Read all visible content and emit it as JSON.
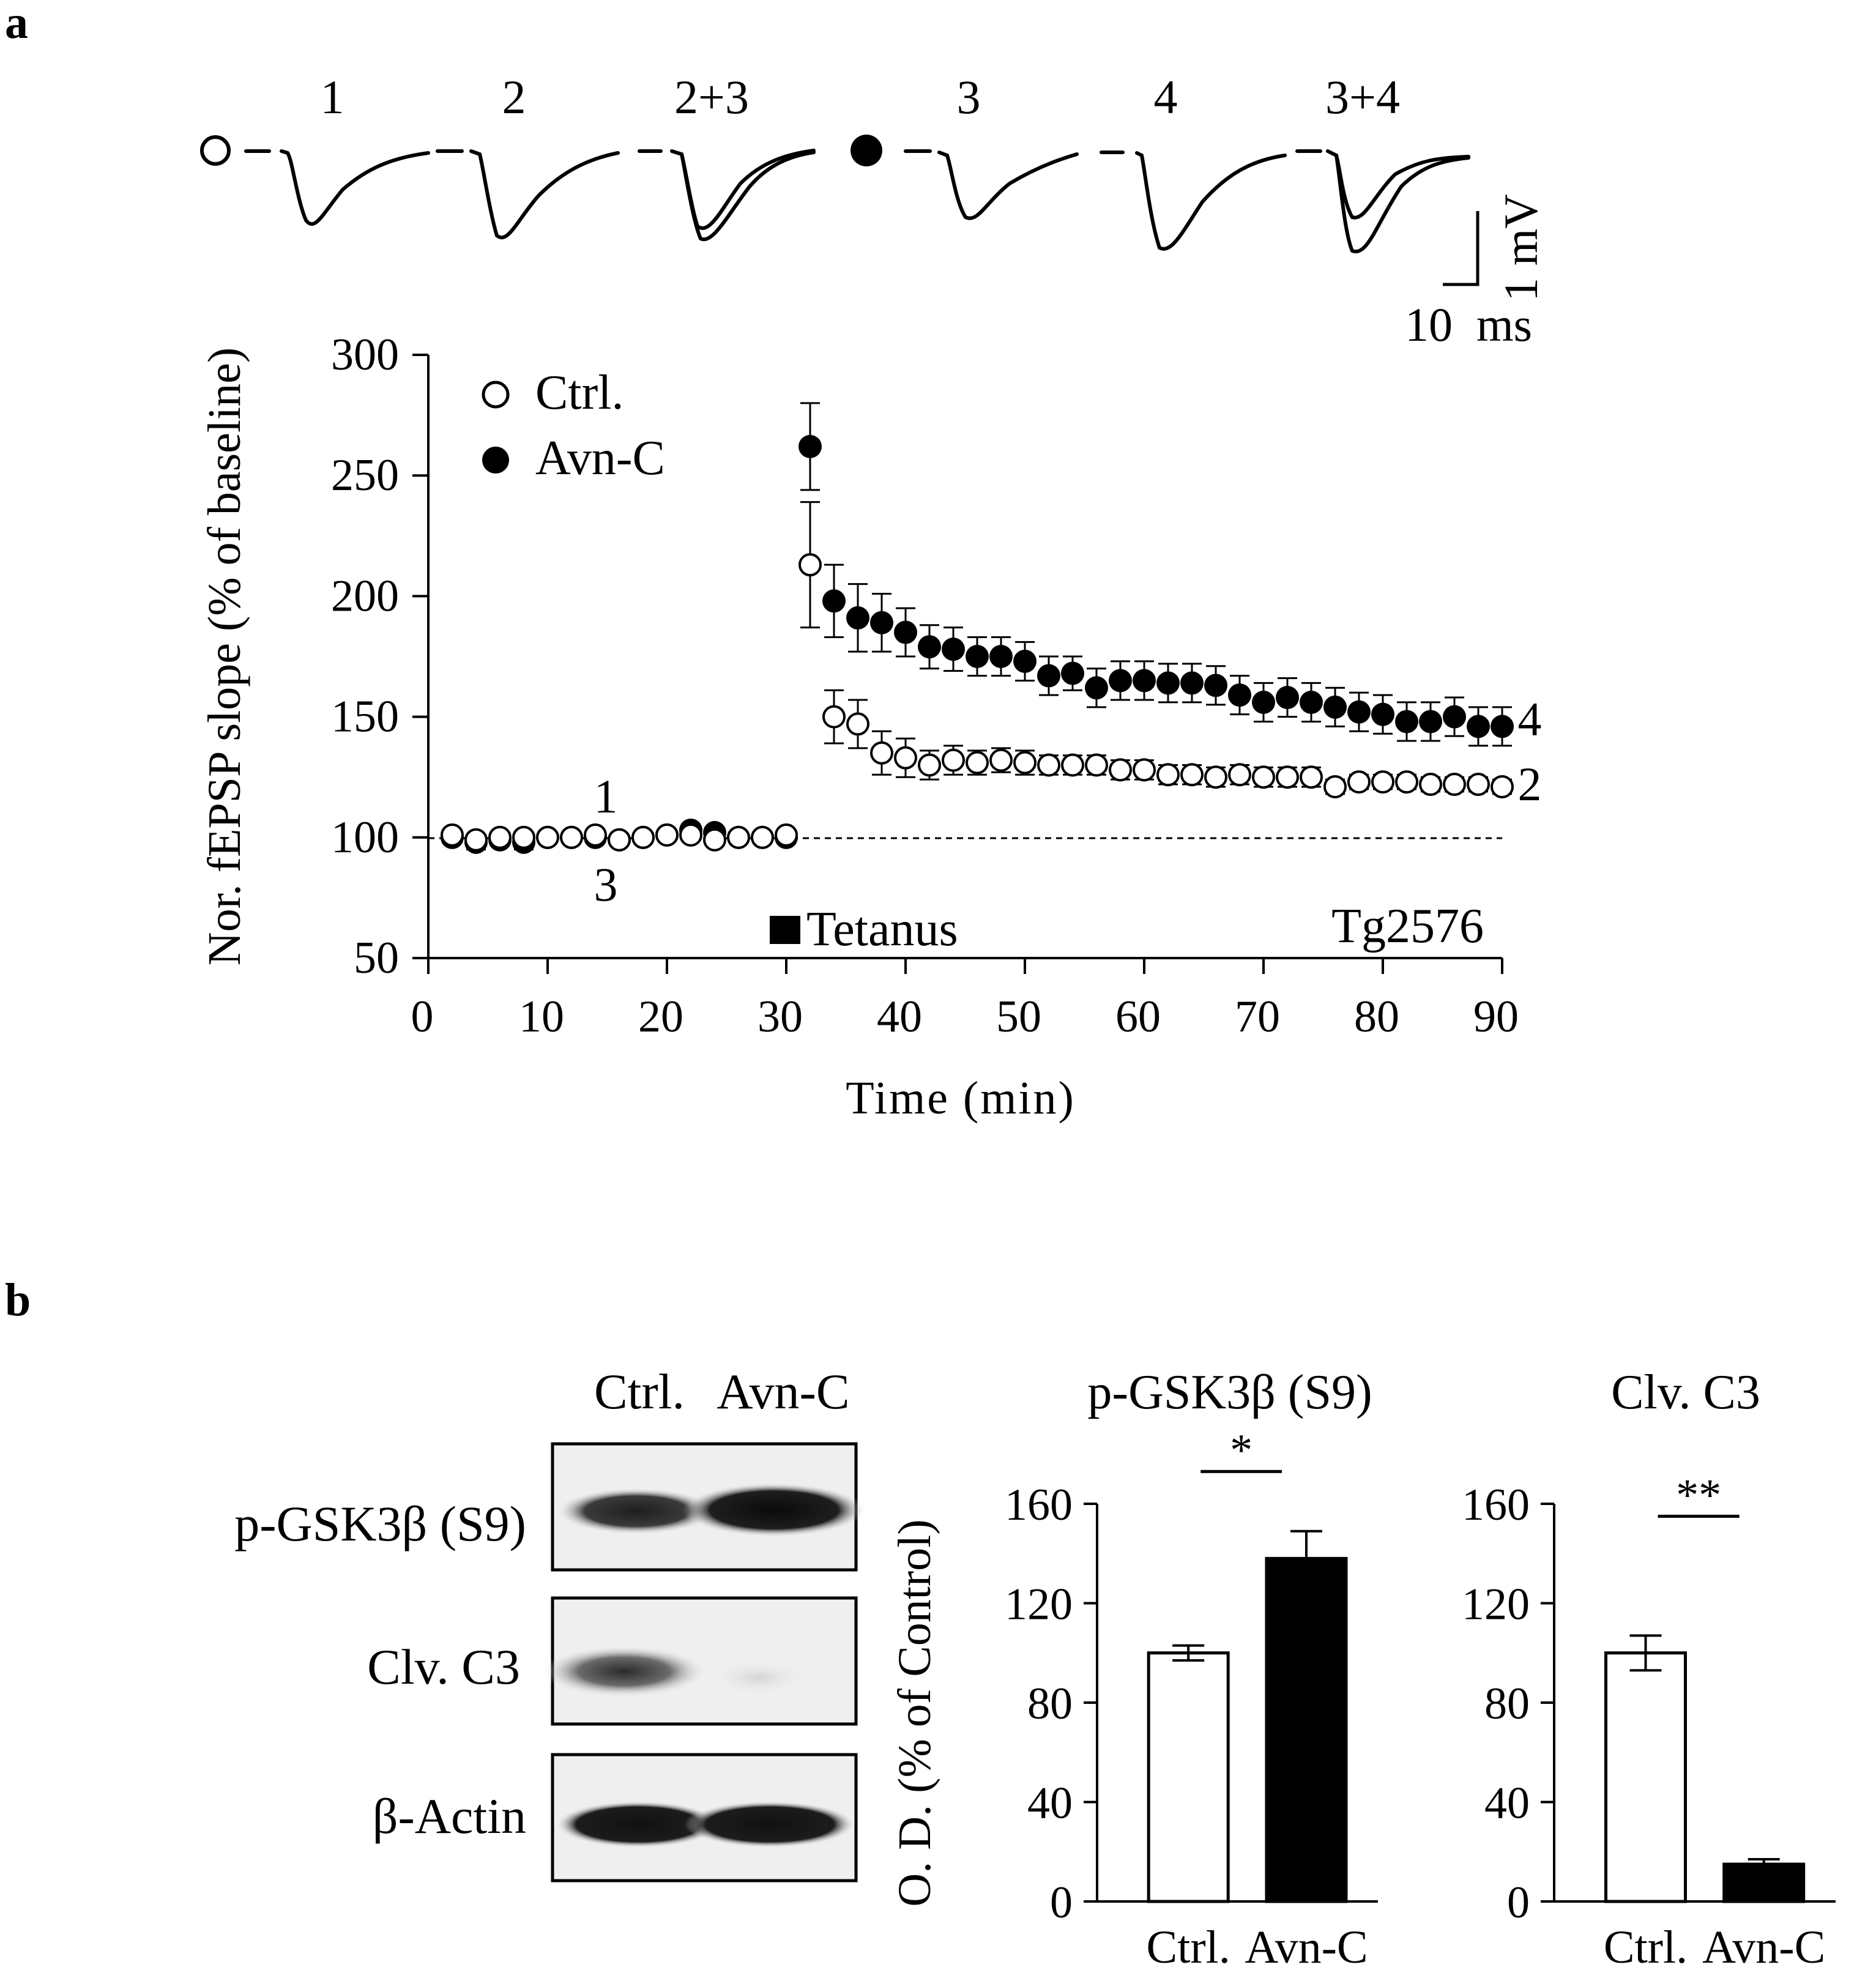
{
  "panel_a_label": "a",
  "panel_b_label": "b",
  "traces": {
    "ctrl_labels": [
      "1",
      "2",
      "2+3"
    ],
    "avn_labels": [
      "3",
      "4",
      "3+4"
    ],
    "scale_v": "1 mV",
    "scale_t": "10  ms"
  },
  "ltp": {
    "legend_ctrl": "Ctrl.",
    "legend_avn": "Avn-C",
    "tetanus": "Tetanus",
    "strain": "Tg2576",
    "point1": "1",
    "point3": "3",
    "end_ctrl": "2",
    "end_avn": "4"
  },
  "blot": {
    "col_ctrl": "Ctrl.",
    "col_avn": "Avn-C",
    "row1": "p-GSK3β (S9)",
    "row2": "Clv. C3",
    "row3": "β-Actin"
  },
  "colors": {
    "ink": "#000000",
    "paper": "#ffffff",
    "blot_bg": "#efefef"
  },
  "chart_data": [
    {
      "type": "scatter",
      "title": "",
      "xlabel": "Time (min)",
      "ylabel": "Nor. fEPSP slope (% of baseline)",
      "xlim": [
        0,
        90
      ],
      "ylim": [
        50,
        300
      ],
      "xticks": [
        "0",
        "10",
        "20",
        "30",
        "40",
        "50",
        "60",
        "70",
        "80",
        "90"
      ],
      "yticks": [
        "50",
        "100",
        "150",
        "200",
        "250",
        "300"
      ],
      "baseline": 100,
      "tetanus_time": 31,
      "series": [
        {
          "name": "Avn-C",
          "marker": "filled",
          "x": [
            2,
            4,
            6,
            8,
            10,
            12,
            14,
            16,
            18,
            20,
            22,
            24,
            26,
            28,
            30,
            32,
            34,
            36,
            38,
            40,
            42,
            44,
            46,
            48,
            50,
            52,
            54,
            56,
            58,
            60,
            62,
            64,
            66,
            68,
            70,
            72,
            74,
            76,
            78,
            80,
            82,
            84,
            86,
            88,
            90
          ],
          "y": [
            100,
            98,
            99,
            98,
            100,
            100,
            100,
            99,
            100,
            101,
            103,
            102,
            100,
            100,
            100,
            262,
            198,
            191,
            189,
            185,
            179,
            178,
            175,
            175,
            173,
            167,
            168,
            162,
            165,
            165,
            164,
            164,
            163,
            159,
            156,
            158,
            156,
            154,
            152,
            151,
            148,
            148,
            150,
            146,
            146
          ],
          "err": [
            2,
            3,
            2,
            3,
            2,
            2,
            2,
            2,
            2,
            2,
            2,
            2,
            2,
            2,
            2,
            18,
            15,
            14,
            12,
            10,
            9,
            9,
            8,
            8,
            8,
            8,
            7,
            8,
            8,
            8,
            8,
            8,
            8,
            8,
            8,
            8,
            8,
            8,
            8,
            8,
            8,
            8,
            8,
            8,
            8
          ]
        },
        {
          "name": "Ctrl.",
          "marker": "open",
          "x": [
            2,
            4,
            6,
            8,
            10,
            12,
            14,
            16,
            18,
            20,
            22,
            24,
            26,
            28,
            30,
            32,
            34,
            36,
            38,
            40,
            42,
            44,
            46,
            48,
            50,
            52,
            54,
            56,
            58,
            60,
            62,
            64,
            66,
            68,
            70,
            72,
            74,
            76,
            78,
            80,
            82,
            84,
            86,
            88,
            90
          ],
          "y": [
            101,
            99,
            100,
            100,
            100,
            100,
            101,
            99,
            100,
            101,
            101,
            99,
            100,
            100,
            101,
            213,
            150,
            147,
            135,
            133,
            130,
            132,
            131,
            132,
            131,
            130,
            130,
            130,
            128,
            128,
            126,
            126,
            125,
            126,
            125,
            125,
            125,
            121,
            123,
            123,
            123,
            122,
            122,
            122,
            121
          ],
          "err": [
            2,
            2,
            2,
            2,
            2,
            2,
            2,
            2,
            2,
            2,
            2,
            2,
            2,
            2,
            2,
            26,
            11,
            10,
            9,
            8,
            6,
            6,
            5,
            5,
            5,
            4,
            4,
            4,
            4,
            4,
            4,
            4,
            4,
            4,
            4,
            4,
            4,
            3,
            3,
            3,
            3,
            3,
            3,
            3,
            3
          ]
        }
      ]
    },
    {
      "type": "bar",
      "title": "p-GSK3β (S9)",
      "ylabel": "O. D. (% of Control)",
      "ylim": [
        0,
        160
      ],
      "yticks": [
        "0",
        "40",
        "80",
        "120",
        "160"
      ],
      "categories": [
        "Ctrl.",
        "Avn-C"
      ],
      "values": [
        100,
        138
      ],
      "errors": [
        3,
        11
      ],
      "fills": [
        "#ffffff",
        "#000000"
      ],
      "significance": "*"
    },
    {
      "type": "bar",
      "title": "Clv. C3",
      "ylabel": "",
      "ylim": [
        0,
        160
      ],
      "yticks": [
        "0",
        "40",
        "80",
        "120",
        "160"
      ],
      "categories": [
        "Ctrl.",
        "Avn-C"
      ],
      "values": [
        100,
        15
      ],
      "errors": [
        7,
        2
      ],
      "fills": [
        "#ffffff",
        "#000000"
      ],
      "significance": "**"
    }
  ]
}
